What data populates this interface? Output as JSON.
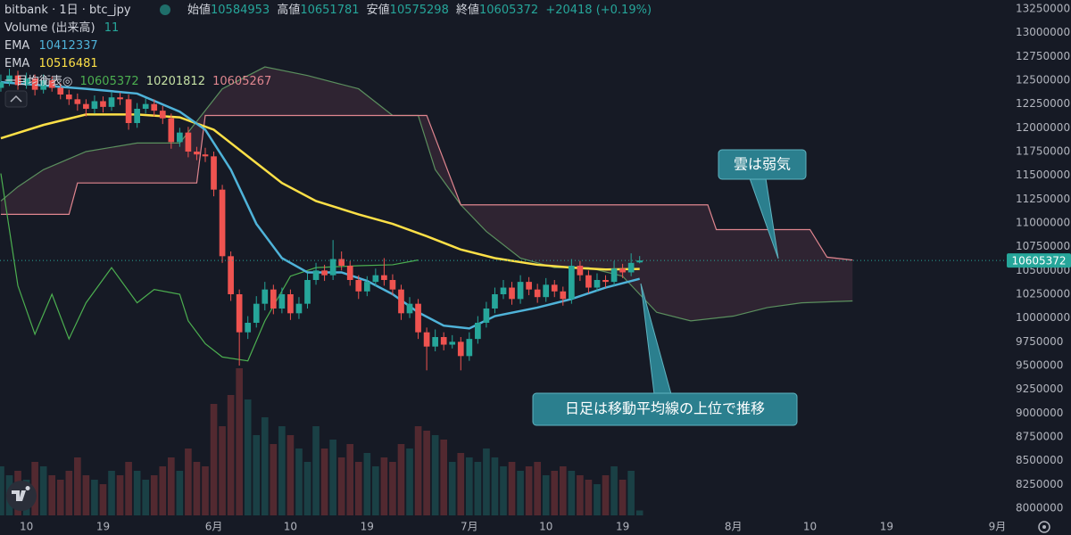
{
  "chart_data": {
    "type": "candlestick",
    "header": {
      "symbol": "bitbank · 1日 · btc_jpy",
      "ohlc": [
        {
          "label": "始値",
          "value": 10584953
        },
        {
          "label": "高値",
          "value": 10651781
        },
        {
          "label": "安値",
          "value": 10575298
        },
        {
          "label": "終値",
          "value": 10605372
        }
      ],
      "change": "+20418 (+0.19%)"
    },
    "indicator_legend": [
      {
        "name": "Volume (出来高)",
        "values": [
          11
        ]
      },
      {
        "name": "EMA",
        "values": [
          10412337
        ]
      },
      {
        "name": "EMA",
        "values": [
          10516481
        ]
      },
      {
        "name": "一目均衡表◎",
        "values": [
          10605372,
          10201812,
          10605267
        ]
      }
    ],
    "up_color": "#26a69a",
    "down_color": "#ef5350",
    "x": [
      6,
      7,
      8,
      9,
      10,
      11,
      12,
      13,
      14,
      15,
      16,
      17,
      18,
      19,
      20,
      21,
      22,
      23,
      24,
      25,
      26,
      27,
      28,
      29,
      30,
      31,
      32,
      33,
      34,
      35,
      36,
      37,
      38,
      39,
      40,
      41,
      42,
      43,
      44,
      45,
      46,
      47,
      48,
      49,
      50,
      51,
      52,
      53,
      54,
      55,
      56,
      57,
      58,
      59,
      60,
      61,
      62,
      63,
      64,
      65,
      66,
      67,
      68,
      69,
      70,
      71,
      72,
      73,
      74,
      75,
      76,
      77,
      78,
      79,
      80,
      81
    ],
    "candles": [
      [
        12420000,
        12560000,
        12380000,
        12480000
      ],
      [
        12480000,
        12620000,
        12440000,
        12550000
      ],
      [
        12550000,
        12600000,
        12400000,
        12450000
      ],
      [
        12450000,
        12580000,
        12410000,
        12520000
      ],
      [
        12520000,
        12560000,
        12340000,
        12400000
      ],
      [
        12400000,
        12560000,
        12360000,
        12500000
      ],
      [
        12500000,
        12540000,
        12380000,
        12420000
      ],
      [
        12420000,
        12470000,
        12300000,
        12350000
      ],
      [
        12350000,
        12400000,
        12240000,
        12300000
      ],
      [
        12300000,
        12360000,
        12180000,
        12250000
      ],
      [
        12250000,
        12300000,
        12120000,
        12200000
      ],
      [
        12200000,
        12340000,
        12150000,
        12280000
      ],
      [
        12280000,
        12330000,
        12160000,
        12220000
      ],
      [
        12220000,
        12380000,
        12180000,
        12320000
      ],
      [
        12320000,
        12370000,
        12240000,
        12300000
      ],
      [
        12300000,
        12350000,
        11980000,
        12050000
      ],
      [
        12050000,
        12260000,
        12000000,
        12200000
      ],
      [
        12200000,
        12310000,
        12150000,
        12250000
      ],
      [
        12250000,
        12300000,
        12120000,
        12180000
      ],
      [
        12180000,
        12230000,
        12040000,
        12100000
      ],
      [
        12100000,
        12150000,
        11780000,
        11850000
      ],
      [
        11850000,
        12000000,
        11800000,
        11950000
      ],
      [
        11950000,
        12010000,
        11690000,
        11750000
      ],
      [
        11750000,
        11800000,
        11660000,
        11720000
      ],
      [
        11720000,
        11790000,
        11640000,
        11700000
      ],
      [
        11700000,
        11750000,
        11280000,
        11350000
      ],
      [
        11350000,
        11400000,
        10580000,
        10650000
      ],
      [
        10650000,
        10700000,
        10180000,
        10250000
      ],
      [
        10250000,
        10300000,
        9500000,
        9850000
      ],
      [
        9850000,
        10020000,
        9780000,
        9950000
      ],
      [
        9950000,
        10230000,
        9900000,
        10150000
      ],
      [
        10150000,
        10380000,
        10080000,
        10300000
      ],
      [
        10300000,
        10350000,
        10040000,
        10100000
      ],
      [
        10100000,
        10320000,
        10050000,
        10250000
      ],
      [
        10250000,
        10300000,
        9980000,
        10050000
      ],
      [
        10050000,
        10220000,
        9990000,
        10150000
      ],
      [
        10150000,
        10470000,
        10100000,
        10400000
      ],
      [
        10400000,
        10580000,
        10350000,
        10500000
      ],
      [
        10500000,
        10560000,
        10390000,
        10450000
      ],
      [
        10450000,
        10820000,
        10400000,
        10620000
      ],
      [
        10620000,
        10700000,
        10500000,
        10550000
      ],
      [
        10550000,
        10600000,
        10340000,
        10400000
      ],
      [
        10400000,
        10450000,
        10200000,
        10280000
      ],
      [
        10280000,
        10440000,
        10230000,
        10380000
      ],
      [
        10380000,
        10520000,
        10330000,
        10450000
      ],
      [
        10450000,
        10630000,
        10340000,
        10400000
      ],
      [
        10400000,
        10460000,
        10240000,
        10300000
      ],
      [
        10300000,
        10350000,
        9980000,
        10050000
      ],
      [
        10050000,
        10220000,
        10000000,
        10150000
      ],
      [
        10150000,
        10200000,
        9780000,
        9850000
      ],
      [
        9850000,
        9900000,
        9450000,
        9700000
      ],
      [
        9700000,
        9880000,
        9650000,
        9800000
      ],
      [
        9800000,
        9850000,
        9660000,
        9720000
      ],
      [
        9720000,
        9820000,
        9680000,
        9750000
      ],
      [
        9750000,
        9800000,
        9450000,
        9600000
      ],
      [
        9600000,
        9850000,
        9550000,
        9780000
      ],
      [
        9780000,
        10020000,
        9730000,
        9950000
      ],
      [
        9950000,
        10170000,
        9900000,
        10100000
      ],
      [
        10100000,
        10320000,
        10050000,
        10250000
      ],
      [
        10250000,
        10400000,
        10200000,
        10320000
      ],
      [
        10320000,
        10380000,
        10140000,
        10200000
      ],
      [
        10200000,
        10450000,
        10150000,
        10380000
      ],
      [
        10380000,
        10430000,
        10240000,
        10300000
      ],
      [
        10300000,
        10360000,
        10160000,
        10220000
      ],
      [
        10220000,
        10420000,
        10170000,
        10350000
      ],
      [
        10350000,
        10400000,
        10220000,
        10280000
      ],
      [
        10280000,
        10330000,
        10130000,
        10200000
      ],
      [
        10200000,
        10620000,
        10150000,
        10550000
      ],
      [
        10550000,
        10600000,
        10390000,
        10450000
      ],
      [
        10450000,
        10500000,
        10260000,
        10320000
      ],
      [
        10320000,
        10470000,
        10280000,
        10400000
      ],
      [
        10400000,
        10450000,
        10320000,
        10380000
      ],
      [
        10380000,
        10600000,
        10340000,
        10520000
      ],
      [
        10520000,
        10570000,
        10420000,
        10480000
      ],
      [
        10480000,
        10680000,
        10440000,
        10580000
      ],
      [
        10584953,
        10651781,
        10575298,
        10605372
      ]
    ],
    "volume": [
      110,
      90,
      100,
      80,
      120,
      110,
      90,
      80,
      100,
      130,
      90,
      80,
      70,
      100,
      90,
      120,
      100,
      80,
      90,
      110,
      130,
      100,
      150,
      120,
      110,
      250,
      200,
      270,
      330,
      260,
      180,
      220,
      160,
      200,
      180,
      150,
      120,
      200,
      150,
      170,
      130,
      160,
      120,
      140,
      110,
      130,
      120,
      160,
      150,
      200,
      190,
      180,
      170,
      120,
      140,
      130,
      120,
      150,
      130,
      110,
      120,
      100,
      110,
      120,
      90,
      100,
      110,
      100,
      90,
      80,
      70,
      90,
      110,
      80,
      100,
      11
    ],
    "lines": [
      {
        "color": "#5b8f5e",
        "x": [
          6,
          8,
          11,
          16,
          22,
          27,
          32,
          37,
          42,
          48,
          52,
          55,
          57,
          60,
          63,
          67,
          71,
          75,
          79,
          83,
          87,
          92,
          96,
          100,
          106
        ],
        "values": [
          11230000,
          11380000,
          11560000,
          11750000,
          11840000,
          11840000,
          12410000,
          12640000,
          12550000,
          12410000,
          12130000,
          12130000,
          11560000,
          11190000,
          10910000,
          10630000,
          10530000,
          10530000,
          10440000,
          10060000,
          9970000,
          10020000,
          10110000,
          10160000,
          10180000
        ]
      },
      {
        "color": "#e0868f",
        "x": [
          6,
          14,
          15,
          29,
          30,
          56,
          60,
          89,
          90,
          101,
          103,
          106
        ],
        "values": [
          11090000,
          11090000,
          11420000,
          11420000,
          12130000,
          12130000,
          11190000,
          11190000,
          10930000,
          10930000,
          10640000,
          10610000
        ]
      },
      {
        "color": "#4caf50",
        "x": [
          6,
          8,
          10,
          12,
          14,
          16,
          19,
          22,
          24,
          27,
          28,
          30,
          32,
          35,
          37,
          40,
          43,
          48,
          52,
          55
        ],
        "values": [
          11520000,
          10340000,
          9830000,
          10250000,
          9780000,
          10160000,
          10530000,
          10160000,
          10300000,
          10250000,
          9970000,
          9730000,
          9590000,
          9550000,
          9970000,
          10440000,
          10530000,
          10550000,
          10560000,
          10610000
        ]
      },
      {
        "color": "#fde047",
        "x": [
          6,
          11,
          16,
          22,
          27,
          31,
          35,
          39,
          43,
          48,
          52,
          56,
          60,
          64,
          69,
          73,
          77,
          81
        ],
        "values": [
          11890000,
          12030000,
          12140000,
          12140000,
          12110000,
          11980000,
          11700000,
          11420000,
          11230000,
          11090000,
          10990000,
          10860000,
          10720000,
          10630000,
          10560000,
          10530000,
          10510000,
          10516481
        ]
      },
      {
        "color": "#4fb3d9",
        "x": [
          6,
          16,
          22,
          27,
          30,
          33,
          36,
          39,
          42,
          46,
          49,
          52,
          55,
          58,
          61,
          64,
          69,
          73,
          77,
          81
        ],
        "values": [
          12480000,
          12410000,
          12360000,
          12170000,
          11980000,
          11560000,
          10990000,
          10630000,
          10480000,
          10480000,
          10390000,
          10250000,
          10060000,
          9920000,
          9890000,
          10020000,
          10110000,
          10200000,
          10320000,
          10412337
        ]
      }
    ],
    "last_price": 10605372,
    "xlim": [
      5.9,
      124.1
    ],
    "ylim": [
      8000000,
      13250000
    ],
    "yticks": [
      13250000,
      13000000,
      12750000,
      12500000,
      12250000,
      12000000,
      11750000,
      11500000,
      11250000,
      11000000,
      10750000,
      10500000,
      10250000,
      10000000,
      9750000,
      9500000,
      9250000,
      9000000,
      8750000,
      8500000,
      8250000,
      8000000
    ],
    "xticks": [
      {
        "value": 9,
        "label": "10"
      },
      {
        "value": 18,
        "label": "19"
      },
      {
        "value": 31,
        "label": "6月"
      },
      {
        "value": 40,
        "label": "10"
      },
      {
        "value": 49,
        "label": "19"
      },
      {
        "value": 61,
        "label": "7月"
      },
      {
        "value": 70,
        "label": "10"
      },
      {
        "value": 79,
        "label": "19"
      },
      {
        "value": 92,
        "label": "8月"
      },
      {
        "value": 101,
        "label": "10"
      },
      {
        "value": 110,
        "label": "19"
      },
      {
        "value": 123,
        "label": "9月"
      }
    ],
    "grid": false,
    "annotations": [
      {
        "text": "雲は弱気"
      },
      {
        "text": "日足は移動平均線の上位で推移"
      }
    ]
  }
}
